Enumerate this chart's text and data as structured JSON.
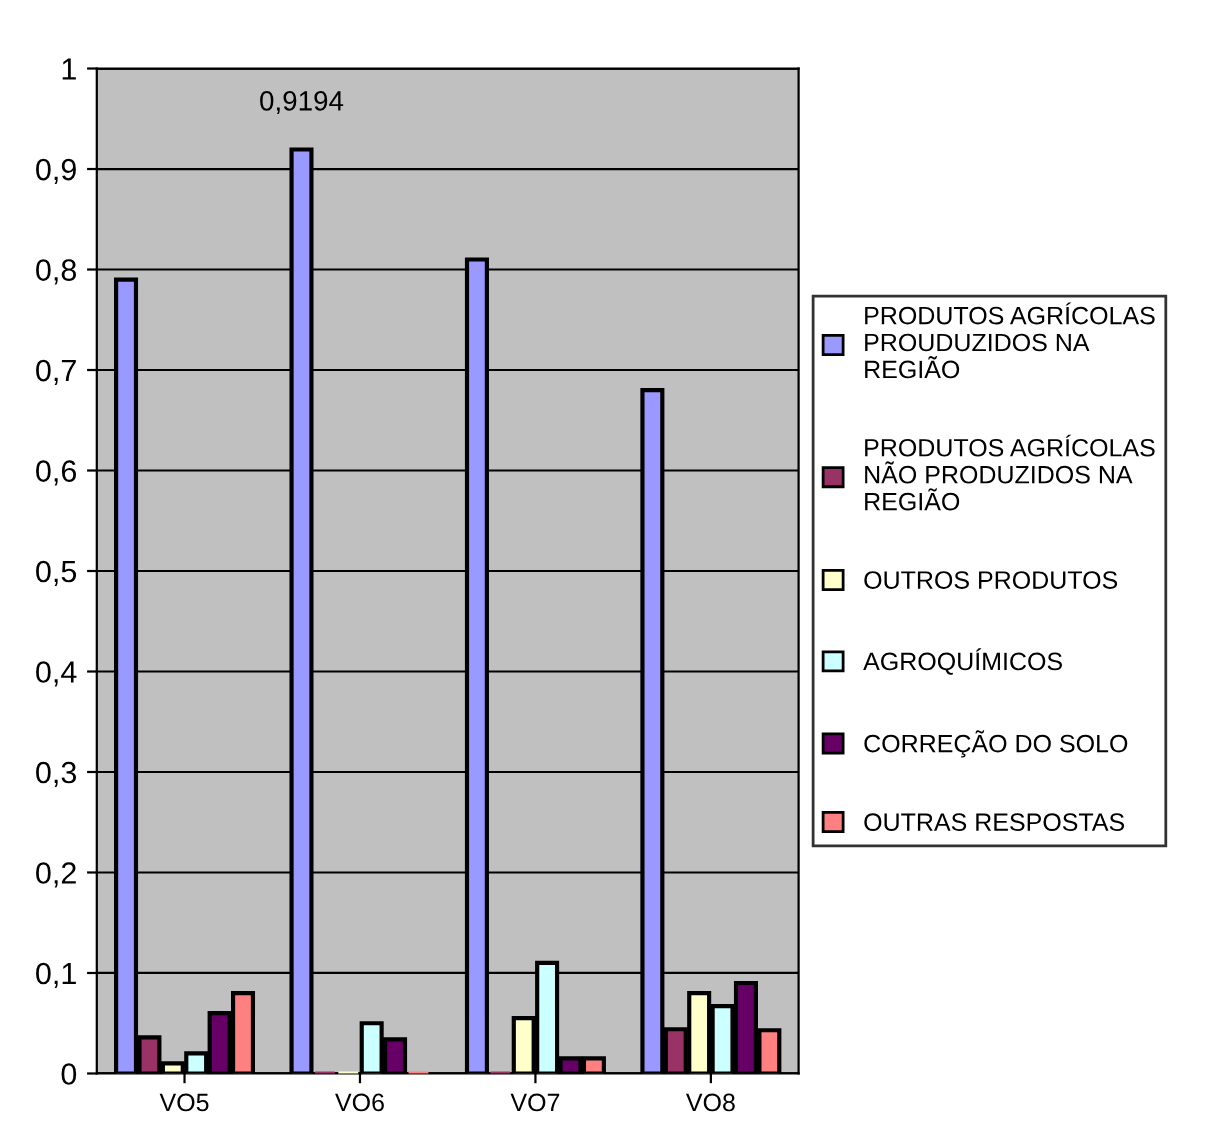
{
  "chart_data": {
    "type": "bar",
    "categories": [
      "VO5",
      "VO6",
      "VO7",
      "VO8"
    ],
    "series": [
      {
        "name": "PRODUTOS AGRÍCOLAS\nPROUDUZIDOS NA\nREGIÃO",
        "color": "#9999ff",
        "values": [
          0.79,
          0.9194,
          0.81,
          0.68
        ],
        "value_labels": [
          null,
          "0,9194",
          null,
          null
        ]
      },
      {
        "name": "PRODUTOS AGRÍCOLAS\nNÃO PRODUZIDOS NA\nREGIÃO",
        "color": "#993366",
        "values": [
          0.036,
          0,
          0,
          0.044
        ]
      },
      {
        "name": "OUTROS PRODUTOS",
        "color": "#ffffcc",
        "values": [
          0.01,
          0,
          0.055,
          0.08
        ]
      },
      {
        "name": "AGROQUÍMICOS",
        "color": "#ccffff",
        "values": [
          0.02,
          0.05,
          0.11,
          0.067
        ]
      },
      {
        "name": "CORREÇÃO DO SOLO",
        "color": "#660066",
        "values": [
          0.06,
          0.034,
          0.015,
          0.09
        ]
      },
      {
        "name": "OUTRAS RESPOSTAS",
        "color": "#ff8080",
        "values": [
          0.08,
          0,
          0.015,
          0.043
        ]
      }
    ],
    "ylim": [
      0,
      1
    ],
    "yticks": [
      0,
      {
        "value": 0.1,
        "label": "0,1"
      },
      {
        "value": 0.2,
        "label": "0,2"
      },
      {
        "value": 0.3,
        "label": "0,3"
      },
      {
        "value": 0.4,
        "label": "0,4"
      },
      {
        "value": 0.5,
        "label": "0,5"
      },
      {
        "value": 0.6,
        "label": "0,6"
      },
      {
        "value": 0.7,
        "label": "0,7"
      },
      {
        "value": 0.8,
        "label": "0,8"
      },
      {
        "value": 0.9,
        "label": "0,9"
      },
      1
    ],
    "grid": "y",
    "legend": "right"
  }
}
